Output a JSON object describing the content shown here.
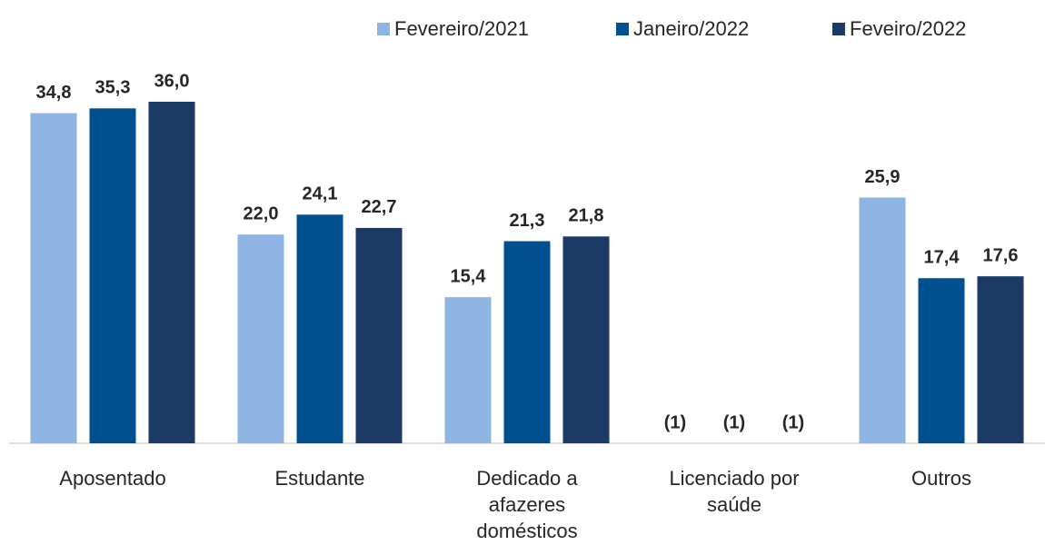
{
  "chart_data": {
    "type": "bar",
    "categories": [
      "Aposentado",
      "Estudante",
      "Dedicado a afazeres domésticos",
      "Licenciado por saúde",
      "Outros"
    ],
    "series": [
      {
        "name": "Fevereiro/2021",
        "color": "#8db4e2",
        "values": [
          34.8,
          22.0,
          15.4,
          null,
          25.9
        ],
        "value_labels": [
          "34,8",
          "22,0",
          "15,4",
          "(1)",
          "25,9"
        ]
      },
      {
        "name": "Janeiro/2022",
        "color": "#00508f",
        "values": [
          35.3,
          24.1,
          21.3,
          null,
          17.4
        ],
        "value_labels": [
          "35,3",
          "24,1",
          "21,3",
          "(1)",
          "17,4"
        ]
      },
      {
        "name": "Feveiro/2022",
        "color": "#1b3a66",
        "values": [
          36.0,
          22.7,
          21.8,
          null,
          17.6
        ],
        "value_labels": [
          "36,0",
          "22,7",
          "21,8",
          "(1)",
          "17,6"
        ]
      }
    ],
    "legend": "top-right"
  }
}
